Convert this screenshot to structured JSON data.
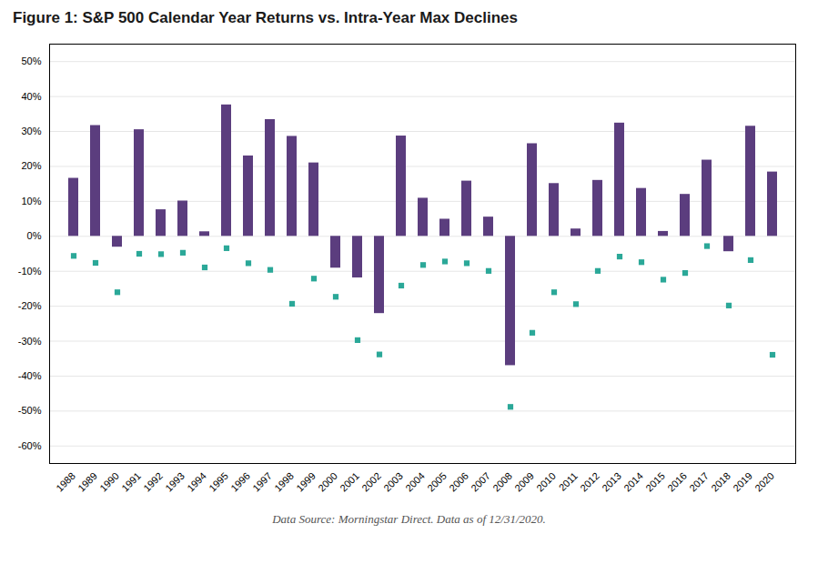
{
  "chart_data": {
    "type": "bar",
    "title": "Figure 1: S&P 500 Calendar Year Returns vs. Intra-Year Max Declines",
    "footnote": "Data Source: Morningstar Direct. Data as of 12/31/2020.",
    "categories": [
      "1988",
      "1989",
      "1990",
      "1991",
      "1992",
      "1993",
      "1994",
      "1995",
      "1996",
      "1997",
      "1998",
      "1999",
      "2000",
      "2001",
      "2002",
      "2003",
      "2004",
      "2005",
      "2006",
      "2007",
      "2008",
      "2009",
      "2010",
      "2011",
      "2012",
      "2013",
      "2014",
      "2015",
      "2016",
      "2017",
      "2018",
      "2019",
      "2020"
    ],
    "series": [
      {
        "type": "bar",
        "color": "#5b3d7e",
        "values": [
          16.6,
          31.7,
          -3.1,
          30.5,
          7.6,
          10.1,
          1.3,
          37.6,
          23.0,
          33.4,
          28.6,
          21.0,
          -9.1,
          -11.9,
          -22.1,
          28.7,
          10.9,
          4.9,
          15.8,
          5.5,
          -37.0,
          26.5,
          15.1,
          2.1,
          16.0,
          32.4,
          13.7,
          1.4,
          12.0,
          21.8,
          -4.4,
          31.5,
          18.4
        ]
      },
      {
        "type": "scatter",
        "marker": "square",
        "color": "#2ba898",
        "values": [
          -5.6,
          -7.6,
          -16.0,
          -5.0,
          -5.1,
          -4.7,
          -8.9,
          -3.4,
          -7.7,
          -9.6,
          -19.3,
          -12.1,
          -17.3,
          -29.7,
          -33.8,
          -14.1,
          -8.2,
          -7.2,
          -7.7,
          -9.9,
          -48.8,
          -27.6,
          -16.0,
          -19.4,
          -9.9,
          -5.8,
          -7.4,
          -12.4,
          -10.5,
          -2.8,
          -19.8,
          -6.8,
          -33.9
        ]
      }
    ],
    "ylim": [
      -65,
      55
    ],
    "yticks": [
      {
        "value": -60,
        "label": "-60%"
      },
      {
        "value": -50,
        "label": "-50%"
      },
      {
        "value": -40,
        "label": "-40%"
      },
      {
        "value": -30,
        "label": "-30%"
      },
      {
        "value": -20,
        "label": "-20%"
      },
      {
        "value": -10,
        "label": "-10%"
      },
      {
        "value": 0,
        "label": "0%"
      },
      {
        "value": 10,
        "label": "10%"
      },
      {
        "value": 20,
        "label": "20%"
      },
      {
        "value": 30,
        "label": "30%"
      },
      {
        "value": 40,
        "label": "40%"
      },
      {
        "value": 50,
        "label": "50%"
      }
    ],
    "grid": true
  }
}
